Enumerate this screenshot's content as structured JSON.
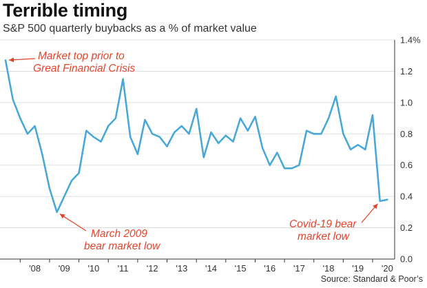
{
  "chart_data": {
    "type": "line",
    "title": "Terrible timing",
    "subtitle": "S&P 500 quarterly buybacks as a % of market value",
    "source": "Source: Standard & Poor’s",
    "ylim": [
      0.0,
      1.4
    ],
    "xlim": [
      2007.5,
      2020.75
    ],
    "y_ticks": [
      {
        "value": 0.0,
        "label": "0.0"
      },
      {
        "value": 0.2,
        "label": "0.2"
      },
      {
        "value": 0.4,
        "label": "0.4"
      },
      {
        "value": 0.6,
        "label": "0.6"
      },
      {
        "value": 0.8,
        "label": "0.8"
      },
      {
        "value": 1.0,
        "label": "1.0"
      },
      {
        "value": 1.2,
        "label": "1.2"
      },
      {
        "value": 1.4,
        "label": "1.4%"
      }
    ],
    "x_ticks": [
      {
        "value": 2008,
        "label": "'08"
      },
      {
        "value": 2009,
        "label": "'09"
      },
      {
        "value": 2010,
        "label": "'10"
      },
      {
        "value": 2011,
        "label": "'11"
      },
      {
        "value": 2012,
        "label": "'12"
      },
      {
        "value": 2013,
        "label": "'13"
      },
      {
        "value": 2014,
        "label": "'14"
      },
      {
        "value": 2015,
        "label": "'15"
      },
      {
        "value": 2016,
        "label": "'16"
      },
      {
        "value": 2017,
        "label": "'17"
      },
      {
        "value": 2018,
        "label": "'18"
      },
      {
        "value": 2019,
        "label": "'19"
      },
      {
        "value": 2020,
        "label": "'20"
      }
    ],
    "series": [
      {
        "name": "S&P 500 quarterly buybacks as a % of market value",
        "color": "#4aa8d8",
        "x": [
          2007.5,
          2007.75,
          2008.0,
          2008.25,
          2008.5,
          2008.75,
          2009.0,
          2009.25,
          2009.5,
          2009.75,
          2010.0,
          2010.25,
          2010.5,
          2010.75,
          2011.0,
          2011.25,
          2011.5,
          2011.75,
          2012.0,
          2012.25,
          2012.5,
          2012.75,
          2013.0,
          2013.25,
          2013.5,
          2013.75,
          2014.0,
          2014.25,
          2014.5,
          2014.75,
          2015.0,
          2015.25,
          2015.5,
          2015.75,
          2016.0,
          2016.25,
          2016.5,
          2016.75,
          2017.0,
          2017.25,
          2017.5,
          2017.75,
          2018.0,
          2018.25,
          2018.5,
          2018.75,
          2019.0,
          2019.25,
          2019.5,
          2019.75,
          2020.0,
          2020.25,
          2020.5
        ],
        "values": [
          1.27,
          1.02,
          0.9,
          0.8,
          0.85,
          0.67,
          0.45,
          0.3,
          0.4,
          0.5,
          0.55,
          0.82,
          0.78,
          0.75,
          0.85,
          0.9,
          1.15,
          0.78,
          0.67,
          0.89,
          0.8,
          0.78,
          0.72,
          0.81,
          0.85,
          0.8,
          0.96,
          0.65,
          0.81,
          0.74,
          0.79,
          0.75,
          0.9,
          0.82,
          0.91,
          0.71,
          0.6,
          0.68,
          0.58,
          0.58,
          0.6,
          0.82,
          0.8,
          0.8,
          0.9,
          1.04,
          0.8,
          0.7,
          0.73,
          0.7,
          0.92,
          0.37,
          0.38
        ]
      }
    ],
    "annotations": [
      {
        "lines": [
          "Market top prior to",
          "Great Financial Crisis"
        ],
        "x": 2007.5,
        "y": 1.27,
        "color": "#e4452a"
      },
      {
        "lines": [
          "March 2009",
          "bear market low"
        ],
        "x": 2009.25,
        "y": 0.3,
        "color": "#e4452a"
      },
      {
        "lines": [
          "Covid-19 bear",
          "market low"
        ],
        "x": 2020.25,
        "y": 0.37,
        "color": "#e4452a"
      }
    ]
  }
}
